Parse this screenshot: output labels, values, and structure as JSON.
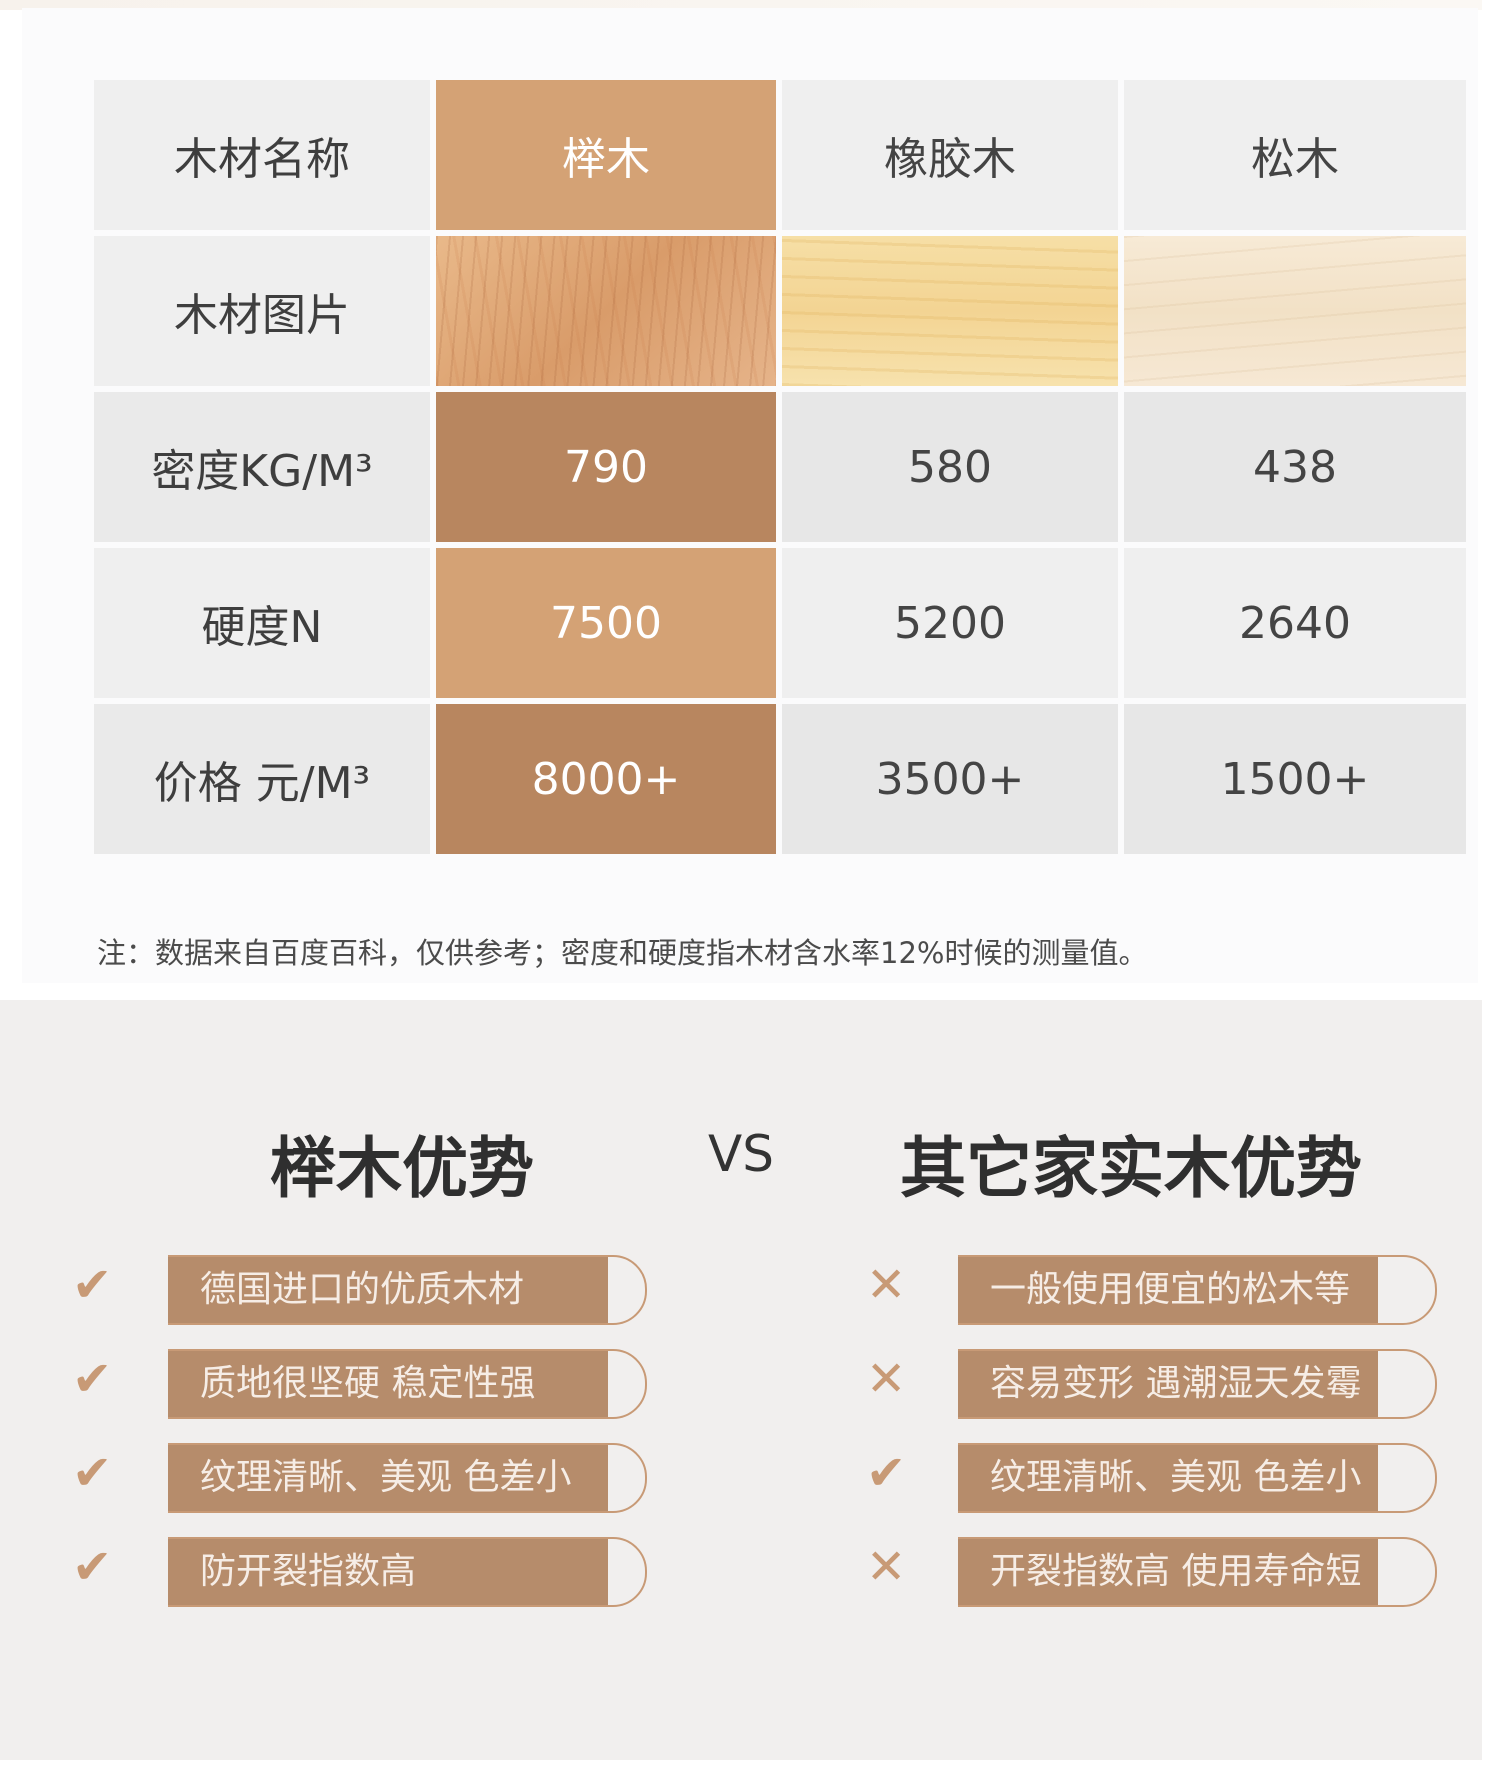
{
  "table": {
    "headers": [
      "木材名称",
      "榉木",
      "橡胶木",
      "松木"
    ],
    "rows": [
      {
        "label": "木材图片",
        "values": [
          "",
          "",
          ""
        ]
      },
      {
        "label": "密度KG/M³",
        "values": [
          "790",
          "580",
          "438"
        ]
      },
      {
        "label": "硬度N",
        "values": [
          "7500",
          "5200",
          "2640"
        ]
      },
      {
        "label": "价格 元/M³",
        "values": [
          "8000+",
          "3500+",
          "1500+"
        ]
      }
    ],
    "note": "注：数据来自百度百科，仅供参考；密度和硬度指木材含水率12%时候的测量值。"
  },
  "compare": {
    "left_title": "榉木优势",
    "vs": "VS",
    "right_title": "其它家实木优势",
    "left_items": [
      {
        "text": "德国进口的优质木材",
        "icon": "check"
      },
      {
        "text": "质地很坚硬 稳定性强",
        "icon": "check"
      },
      {
        "text": "纹理清晰、美观 色差小",
        "icon": "check"
      },
      {
        "text": "防开裂指数高",
        "icon": "check"
      }
    ],
    "right_items": [
      {
        "text": "一般使用便宜的松木等",
        "icon": "cross"
      },
      {
        "text": "容易变形 遇潮湿天发霉",
        "icon": "cross"
      },
      {
        "text": "纹理清晰、美观 色差小",
        "icon": "check"
      },
      {
        "text": "开裂指数高 使用寿命短",
        "icon": "cross"
      }
    ],
    "check_glyph": "✔",
    "cross_glyph": "✕"
  },
  "colors": {
    "beech_light": "#d4a275",
    "beech_dark": "#b8865f",
    "pill_fill": "#b68c6b",
    "pill_border": "#c89a76"
  }
}
